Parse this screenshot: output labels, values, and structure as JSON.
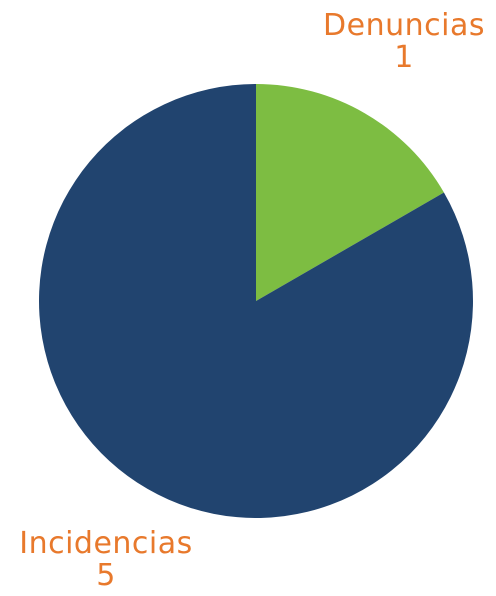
{
  "chart_data": {
    "type": "pie",
    "title": "",
    "categories": [
      "Denuncias",
      "Incidencias"
    ],
    "values": [
      1,
      5
    ],
    "colors": [
      "#7dbd42",
      "#21446f"
    ],
    "label_color": "#e8792c",
    "legend": "none",
    "labels": [
      {
        "name": "Denuncias",
        "value": "1"
      },
      {
        "name": "Incidencias",
        "value": "5"
      }
    ]
  }
}
